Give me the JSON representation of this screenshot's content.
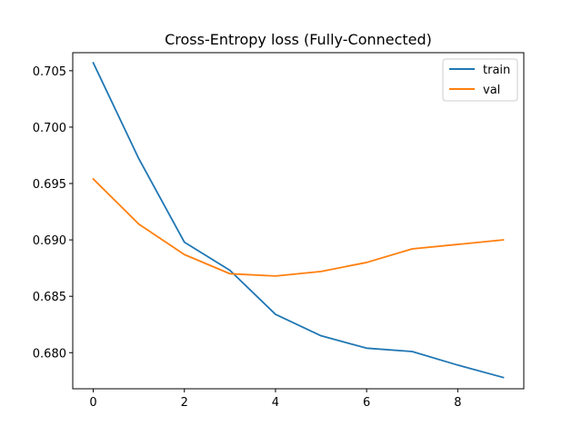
{
  "chart_data": {
    "type": "line",
    "title": "Cross-Entropy loss (Fully-Connected)",
    "xlabel": "",
    "ylabel": "",
    "x": [
      0,
      1,
      2,
      3,
      4,
      5,
      6,
      7,
      8,
      9
    ],
    "xlim": [
      -0.45,
      9.45
    ],
    "ylim": [
      0.6768,
      0.7066
    ],
    "xticks": [
      0,
      2,
      4,
      6,
      8
    ],
    "yticks": [
      0.68,
      0.685,
      0.69,
      0.695,
      0.7,
      0.705
    ],
    "xtick_labels": [
      "0",
      "2",
      "4",
      "6",
      "8"
    ],
    "ytick_labels": [
      "0.680",
      "0.685",
      "0.690",
      "0.695",
      "0.700",
      "0.705"
    ],
    "grid": false,
    "legend_position": "top-right",
    "series": [
      {
        "name": "train",
        "color": "#1f77b4",
        "values": [
          0.7057,
          0.6972,
          0.6898,
          0.6873,
          0.6834,
          0.6815,
          0.6804,
          0.6801,
          0.6789,
          0.6778
        ]
      },
      {
        "name": "val",
        "color": "#ff7f0e",
        "values": [
          0.6954,
          0.6914,
          0.6887,
          0.687,
          0.6868,
          0.6872,
          0.688,
          0.6892,
          0.6896,
          0.69
        ]
      }
    ]
  }
}
